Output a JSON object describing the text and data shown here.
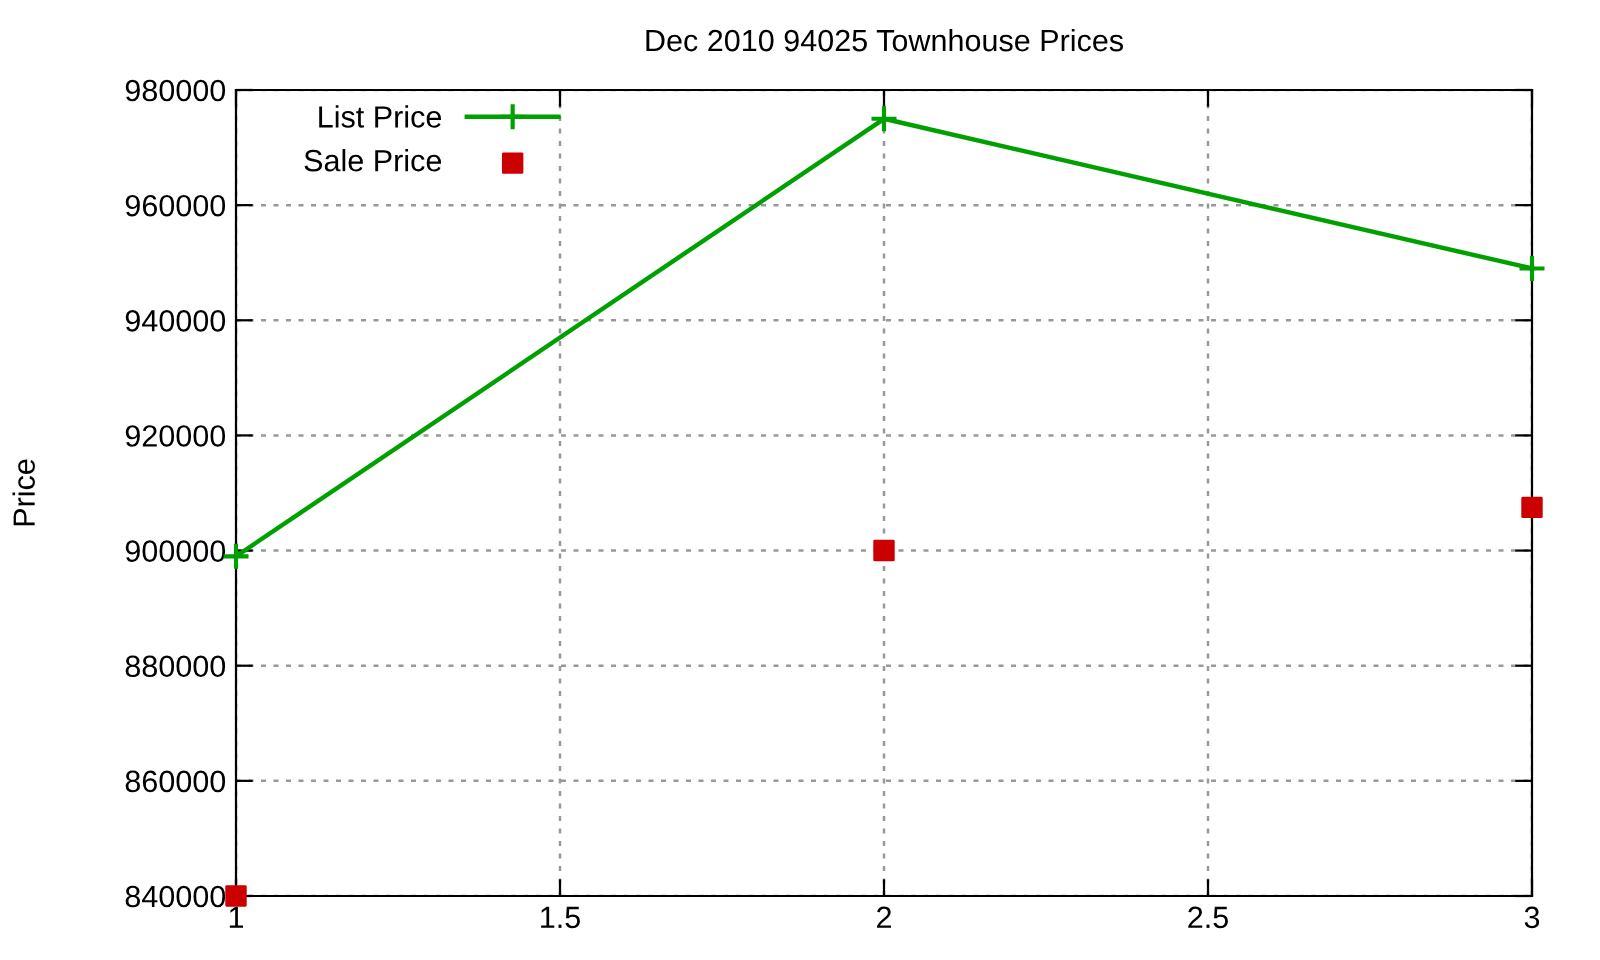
{
  "chart_data": {
    "type": "line",
    "title": "Dec 2010 94025 Townhouse Prices",
    "ylabel": "Price",
    "x": [
      1,
      2,
      3
    ],
    "series": [
      {
        "name": "List Price",
        "color": "#00a000",
        "values": [
          899000,
          975000,
          949000
        ],
        "marker": "cross"
      },
      {
        "name": "Sale Price",
        "color": "#cc0000",
        "values": [
          840000,
          900000,
          907500
        ],
        "type": "scatter",
        "marker": "square"
      }
    ],
    "xlim": [
      1,
      3
    ],
    "xticks": [
      1,
      1.5,
      2,
      2.5,
      3
    ],
    "ylim": [
      840000,
      980000
    ],
    "yticks": [
      840000,
      860000,
      880000,
      900000,
      920000,
      940000,
      960000,
      980000
    ],
    "grid": true,
    "legend": "top left"
  }
}
